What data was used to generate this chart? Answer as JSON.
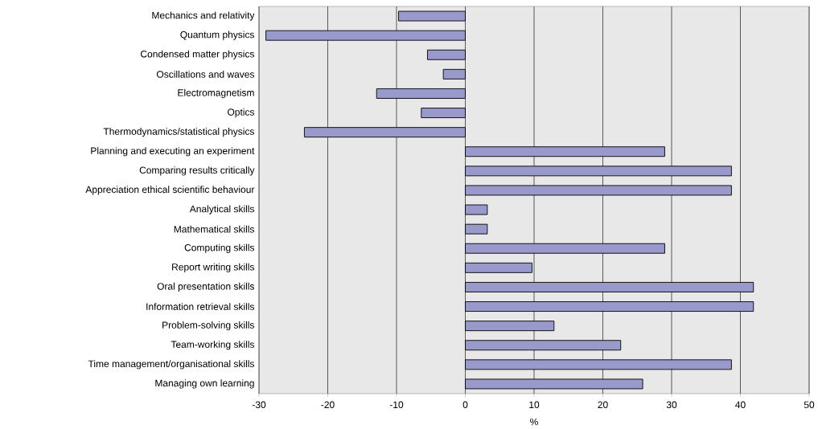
{
  "chart_data": {
    "type": "bar",
    "orientation": "horizontal",
    "xlabel": "%",
    "categories": [
      "Mechanics and relativity",
      "Quantum physics",
      "Condensed matter physics",
      "Oscillations and waves",
      "Electromagnetism",
      "Optics",
      "Thermodynamics/statistical physics",
      "Planning and executing an experiment",
      "Comparing results critically",
      "Appreciation ethical scientific behaviour",
      "Analytical skills",
      "Mathematical skills",
      "Computing skills",
      "Report writing skills",
      "Oral presentation skills",
      "Information retrieval skills",
      "Problem-solving skills",
      "Team-working skills",
      "Time management/organisational skills",
      "Managing own learning"
    ],
    "values": [
      -9.7,
      -29.0,
      -5.5,
      -3.2,
      -12.9,
      -6.4,
      -23.4,
      29.0,
      38.7,
      38.7,
      3.2,
      3.2,
      29.0,
      9.7,
      41.9,
      41.9,
      12.9,
      22.6,
      38.7,
      25.8
    ],
    "color": "#9999cc",
    "xlim": [
      -30,
      50
    ],
    "xticks": [
      -30,
      -20,
      -10,
      0,
      10,
      20,
      30,
      40,
      50
    ],
    "grid": "x"
  }
}
